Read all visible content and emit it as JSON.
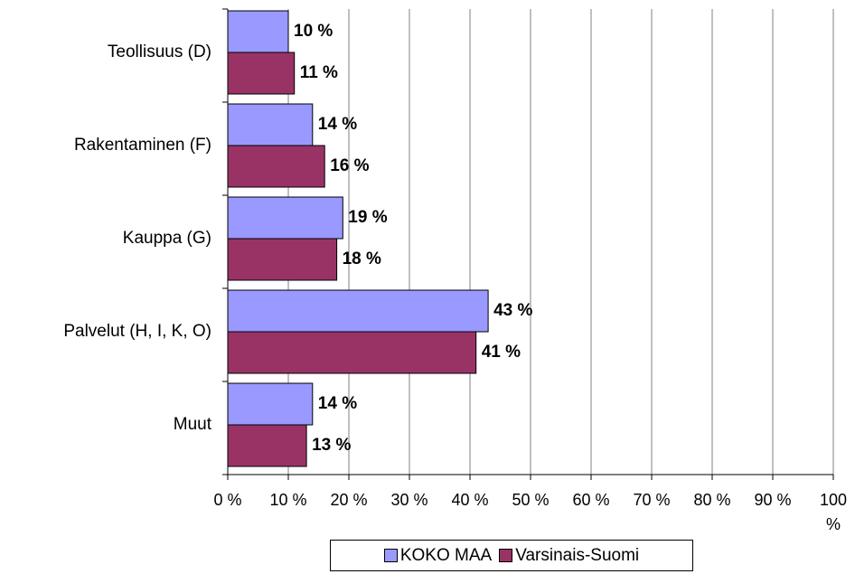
{
  "chart_data": {
    "type": "hbar",
    "categories": [
      "Teollisuus (D)",
      "Rakentaminen (F)",
      "Kauppa (G)",
      "Palvelut (H, I, K, O)",
      "Muut"
    ],
    "series": [
      {
        "name": "KOKO MAA",
        "color": "#9999ff",
        "values": [
          10,
          14,
          19,
          43,
          14
        ],
        "value_labels": [
          "10 %",
          "14 %",
          "19 %",
          "43 %",
          "14 %"
        ]
      },
      {
        "name": "Varsinais-Suomi",
        "color": "#993366",
        "values": [
          11,
          16,
          18,
          41,
          13
        ],
        "value_labels": [
          "11 %",
          "16 %",
          "18 %",
          "41 %",
          "13 %"
        ]
      }
    ],
    "xlim": [
      0,
      100
    ],
    "xticks": [
      {
        "value": 0,
        "label": "0 %"
      },
      {
        "value": 10,
        "label": "10 %"
      },
      {
        "value": 20,
        "label": "20 %"
      },
      {
        "value": 30,
        "label": "30 %"
      },
      {
        "value": 40,
        "label": "40 %"
      },
      {
        "value": 50,
        "label": "50 %"
      },
      {
        "value": 60,
        "label": "60 %"
      },
      {
        "value": 70,
        "label": "70 %"
      },
      {
        "value": 80,
        "label": "80 %"
      },
      {
        "value": 90,
        "label": "90 %"
      },
      {
        "value": 100,
        "label": "100 %"
      }
    ],
    "grid": true,
    "legend": "bottom"
  }
}
